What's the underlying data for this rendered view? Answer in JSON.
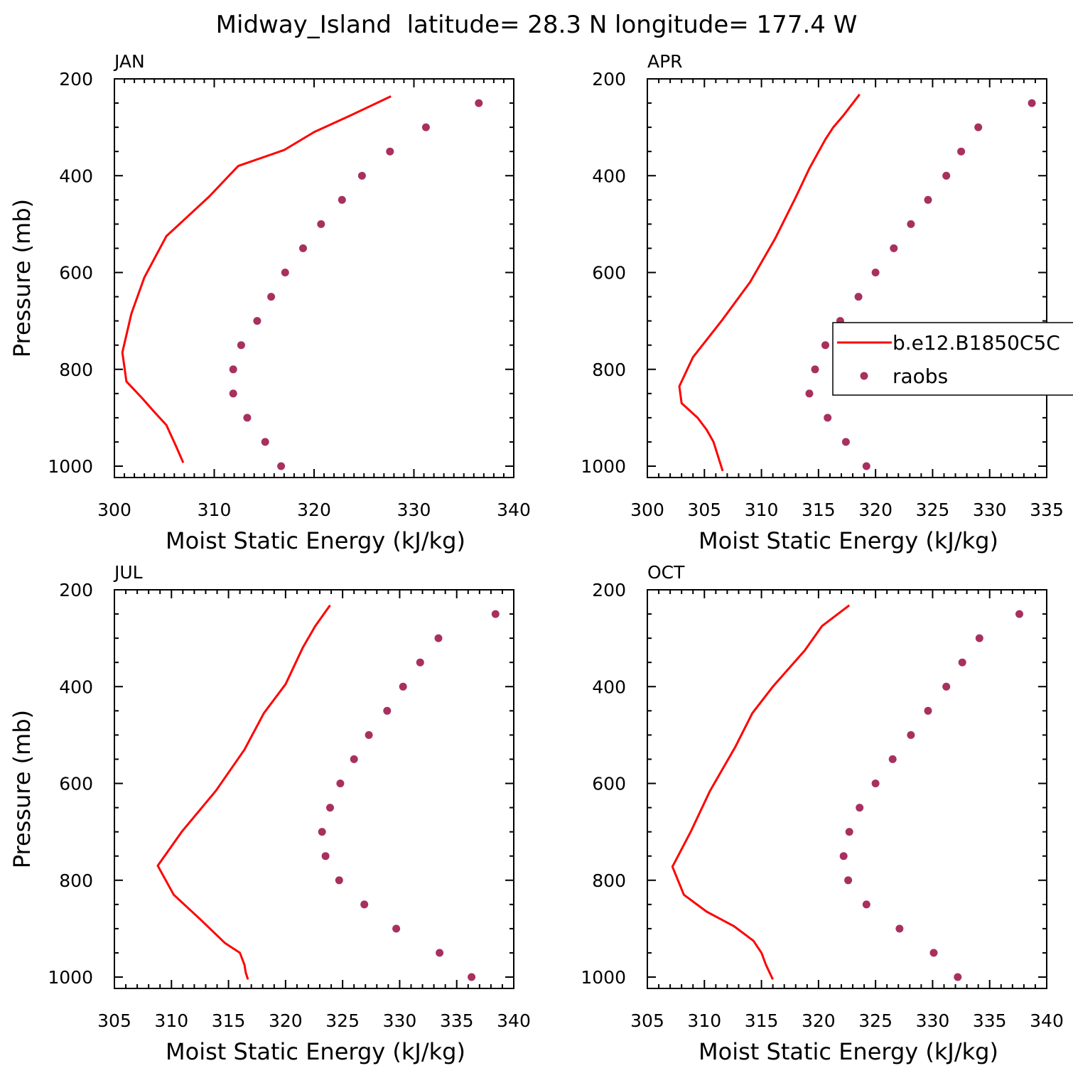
{
  "title": "Midway_Island  latitude= 28.3 N longitude= 177.4 W",
  "colors": {
    "model": "#ff0000",
    "obs": "#a8305f",
    "axis": "#000000"
  },
  "legend": {
    "model_label": "b.e12.B1850C5C",
    "obs_label": "raobs"
  },
  "chart_data": [
    {
      "type": "line",
      "panel_label": "JAN",
      "xlabel": "Moist Static Energy (kJ/kg)",
      "ylabel": "Pressure (mb)",
      "xlim": [
        300,
        340
      ],
      "xticks": [
        300,
        310,
        320,
        330,
        340
      ],
      "ylim": [
        1000,
        200
      ],
      "yticks": [
        200,
        400,
        600,
        800,
        1000
      ],
      "series": [
        {
          "kind": "line",
          "x": [
            327.7,
            323.7,
            320.0,
            317.0,
            312.4,
            309.5,
            305.2,
            303.0,
            301.7,
            300.8,
            301.2,
            302.8,
            304.0,
            305.2,
            306.2,
            306.9
          ],
          "y": [
            236,
            275,
            310,
            347,
            380,
            443,
            525,
            610,
            685,
            765,
            825,
            860,
            888,
            915,
            960,
            993
          ]
        },
        {
          "kind": "scatter",
          "x": [
            336.5,
            331.2,
            327.6,
            324.8,
            322.8,
            320.7,
            318.9,
            317.1,
            315.7,
            314.3,
            312.7,
            311.9,
            311.9,
            313.3,
            315.1,
            316.7
          ],
          "y": [
            250,
            300,
            350,
            400,
            450,
            500,
            550,
            600,
            650,
            700,
            750,
            800,
            850,
            900,
            950,
            1000
          ]
        }
      ]
    },
    {
      "type": "line",
      "panel_label": "APR",
      "xlabel": "Moist Static Energy (kJ/kg)",
      "ylabel": "",
      "xlim": [
        300,
        335
      ],
      "xticks": [
        300,
        305,
        310,
        315,
        320,
        325,
        330,
        335
      ],
      "ylim": [
        1000,
        200
      ],
      "yticks": [
        200,
        400,
        600,
        800,
        1000
      ],
      "series": [
        {
          "kind": "line",
          "x": [
            318.6,
            317.2,
            316.3,
            315.6,
            314.2,
            313.0,
            311.2,
            309.0,
            306.5,
            304.0,
            302.8,
            303.0,
            304.4,
            305.2,
            305.8,
            306.6
          ],
          "y": [
            232,
            275,
            300,
            325,
            385,
            445,
            530,
            620,
            700,
            775,
            835,
            870,
            900,
            925,
            950,
            1010
          ]
        },
        {
          "kind": "scatter",
          "x": [
            333.7,
            329.0,
            327.5,
            326.2,
            324.6,
            323.1,
            321.6,
            320.0,
            318.5,
            316.9,
            315.6,
            314.7,
            314.2,
            315.8,
            317.4,
            319.2
          ],
          "y": [
            250,
            300,
            350,
            400,
            450,
            500,
            550,
            600,
            650,
            700,
            750,
            800,
            850,
            900,
            950,
            1000
          ]
        }
      ]
    },
    {
      "type": "line",
      "panel_label": "JUL",
      "xlabel": "Moist Static Energy (kJ/kg)",
      "ylabel": "Pressure (mb)",
      "xlim": [
        305,
        340
      ],
      "xticks": [
        305,
        310,
        315,
        320,
        325,
        330,
        335,
        340
      ],
      "ylim": [
        1000,
        200
      ],
      "yticks": [
        200,
        400,
        600,
        800,
        1000
      ],
      "series": [
        {
          "kind": "line",
          "x": [
            323.9,
            322.6,
            321.5,
            320.0,
            318.1,
            316.4,
            313.9,
            310.9,
            308.8,
            310.2,
            312.5,
            314.7,
            316.0,
            316.4,
            316.5,
            316.7
          ],
          "y": [
            232,
            275,
            320,
            395,
            455,
            530,
            615,
            700,
            770,
            830,
            880,
            930,
            950,
            975,
            990,
            1005
          ]
        },
        {
          "kind": "scatter",
          "x": [
            338.4,
            333.4,
            331.8,
            330.3,
            328.9,
            327.3,
            326.0,
            324.8,
            323.9,
            323.2,
            323.5,
            324.7,
            326.9,
            329.7,
            333.5,
            336.3
          ],
          "y": [
            250,
            300,
            350,
            400,
            450,
            500,
            550,
            600,
            650,
            700,
            750,
            800,
            850,
            900,
            950,
            1000
          ]
        }
      ]
    },
    {
      "type": "line",
      "panel_label": "OCT",
      "xlabel": "Moist Static Energy (kJ/kg)",
      "ylabel": "",
      "xlim": [
        305,
        340
      ],
      "xticks": [
        305,
        310,
        315,
        320,
        325,
        330,
        335,
        340
      ],
      "ylim": [
        1000,
        200
      ],
      "yticks": [
        200,
        400,
        600,
        800,
        1000
      ],
      "series": [
        {
          "kind": "line",
          "x": [
            322.7,
            320.3,
            318.8,
            316.0,
            314.2,
            312.7,
            310.5,
            308.8,
            307.2,
            308.2,
            310.2,
            312.6,
            314.3,
            315.0,
            315.4,
            316.0
          ],
          "y": [
            232,
            275,
            325,
            400,
            455,
            525,
            615,
            700,
            772,
            830,
            865,
            895,
            925,
            950,
            975,
            1005
          ]
        },
        {
          "kind": "scatter",
          "x": [
            337.6,
            334.1,
            332.6,
            331.2,
            329.6,
            328.1,
            326.5,
            325.0,
            323.6,
            322.7,
            322.2,
            322.6,
            324.2,
            327.1,
            330.1,
            332.2
          ],
          "y": [
            250,
            300,
            350,
            400,
            450,
            500,
            550,
            600,
            650,
            700,
            750,
            800,
            850,
            900,
            950,
            1000
          ]
        }
      ]
    }
  ]
}
